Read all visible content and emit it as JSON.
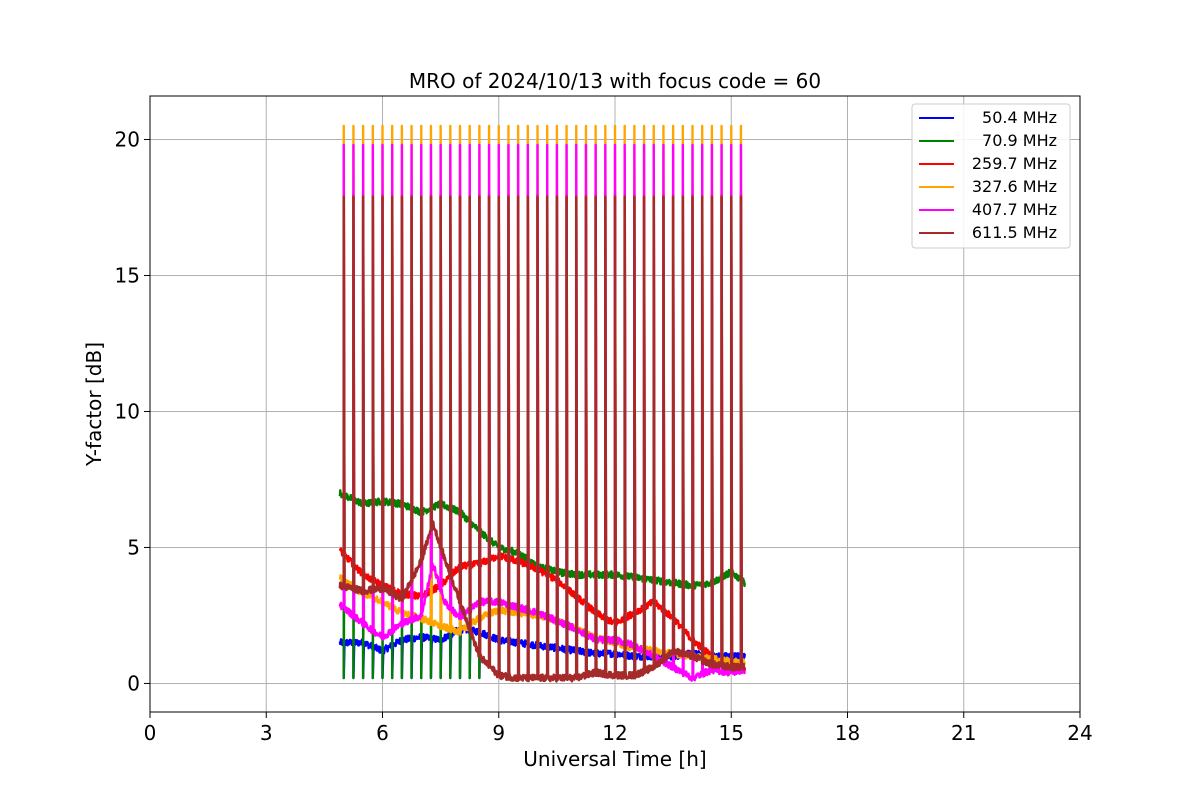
{
  "chart_data": {
    "type": "line",
    "title": "MRO of 2024/10/13 with focus code = 60",
    "xlabel": "Universal Time [h]",
    "ylabel": "Y-factor [dB]",
    "xlim": [
      0,
      24
    ],
    "ylim": [
      -1.05,
      21.6
    ],
    "xticks": [
      0,
      3,
      6,
      9,
      12,
      15,
      18,
      21,
      24
    ],
    "yticks": [
      0,
      5,
      10,
      15,
      20
    ],
    "grid": true,
    "legend_position": "top-right",
    "spike_start_h": 5.0,
    "spike_end_h": 15.3,
    "spike_period_h": 0.25,
    "series": [
      {
        "name": "50.4 MHz",
        "color": "#0000ff",
        "x": [
          4.9,
          5.5,
          6.0,
          6.5,
          7.0,
          7.5,
          8.0,
          8.5,
          9.0,
          9.5,
          10.0,
          10.5,
          11.0,
          11.5,
          12.0,
          12.5,
          13.0,
          13.5,
          14.0,
          14.5,
          15.0,
          15.35
        ],
        "y": [
          1.5,
          1.5,
          1.2,
          1.6,
          1.7,
          1.6,
          2.0,
          1.9,
          1.6,
          1.5,
          1.4,
          1.3,
          1.2,
          1.1,
          1.1,
          1.0,
          1.0,
          1.0,
          1.1,
          1.0,
          1.0,
          1.0
        ],
        "spike_low": 0.2
      },
      {
        "name": "70.9 MHz",
        "color": "#008000",
        "x": [
          4.9,
          5.5,
          6.0,
          6.5,
          7.0,
          7.5,
          8.0,
          8.5,
          9.0,
          9.5,
          10.0,
          10.5,
          11.0,
          11.5,
          12.0,
          12.5,
          13.0,
          13.5,
          14.0,
          14.5,
          15.0,
          15.35
        ],
        "y": [
          7.0,
          6.6,
          6.7,
          6.6,
          6.3,
          6.6,
          6.3,
          5.6,
          5.0,
          4.8,
          4.3,
          4.1,
          4.0,
          4.0,
          4.0,
          3.9,
          3.8,
          3.7,
          3.6,
          3.7,
          4.1,
          3.7
        ],
        "spike_low": 0.2
      },
      {
        "name": "259.7 MHz",
        "color": "#ff0000",
        "x": [
          4.9,
          5.5,
          6.0,
          6.5,
          7.0,
          7.5,
          8.0,
          8.5,
          9.0,
          9.5,
          10.0,
          10.5,
          11.0,
          11.5,
          12.0,
          12.5,
          13.0,
          13.5,
          14.0,
          14.5,
          15.0,
          15.35
        ],
        "y": [
          4.9,
          4.0,
          3.6,
          3.3,
          3.2,
          3.6,
          4.3,
          4.4,
          4.7,
          4.5,
          4.2,
          3.8,
          3.2,
          2.6,
          2.2,
          2.6,
          3.0,
          2.4,
          1.6,
          1.0,
          0.5,
          0.5
        ],
        "spike_low": 0.3
      },
      {
        "name": "327.6 MHz",
        "color": "#ffa500",
        "x": [
          4.9,
          5.5,
          6.0,
          6.5,
          7.0,
          7.5,
          8.0,
          8.5,
          9.0,
          9.5,
          10.0,
          10.5,
          11.0,
          11.5,
          12.0,
          12.5,
          13.0,
          13.5,
          14.0,
          14.5,
          15.0,
          15.35
        ],
        "y": [
          3.9,
          3.3,
          3.0,
          2.6,
          2.4,
          2.1,
          1.9,
          2.4,
          2.7,
          2.6,
          2.5,
          2.3,
          2.0,
          1.7,
          1.5,
          1.3,
          1.2,
          1.1,
          1.0,
          0.9,
          0.8,
          0.8
        ],
        "spike_low": 0.3
      },
      {
        "name": "407.7 MHz",
        "color": "#ff00ff",
        "x": [
          4.9,
          5.5,
          6.0,
          6.5,
          7.0,
          7.3,
          7.6,
          8.0,
          8.5,
          9.0,
          9.5,
          10.0,
          10.5,
          11.0,
          11.5,
          12.0,
          12.5,
          13.0,
          13.5,
          14.0,
          14.5,
          15.0,
          15.35
        ],
        "y": [
          2.9,
          2.2,
          1.7,
          2.2,
          2.5,
          4.4,
          3.0,
          2.4,
          3.0,
          3.0,
          2.8,
          2.6,
          2.3,
          2.0,
          1.6,
          1.6,
          1.4,
          1.0,
          0.6,
          0.2,
          0.5,
          0.4,
          0.5
        ],
        "spike_low": 0.3
      },
      {
        "name": "611.5 MHz",
        "color": "#a52a2a",
        "x": [
          4.9,
          5.5,
          6.0,
          6.5,
          7.0,
          7.3,
          7.6,
          8.0,
          8.5,
          9.0,
          9.5,
          10.0,
          10.5,
          11.0,
          11.5,
          12.0,
          12.5,
          13.0,
          13.5,
          14.0,
          14.5,
          15.0,
          15.35
        ],
        "y": [
          3.6,
          3.4,
          3.5,
          3.1,
          4.5,
          5.9,
          4.6,
          3.0,
          1.0,
          0.3,
          0.2,
          0.2,
          0.2,
          0.2,
          0.4,
          0.3,
          0.3,
          0.6,
          1.2,
          1.0,
          0.7,
          0.6,
          0.6
        ],
        "spike_low": 0.2,
        "spike_high": 17.9
      }
    ],
    "spike_highs": {
      "orange": 20.5,
      "magenta": 19.8,
      "red": 18.0
    }
  }
}
